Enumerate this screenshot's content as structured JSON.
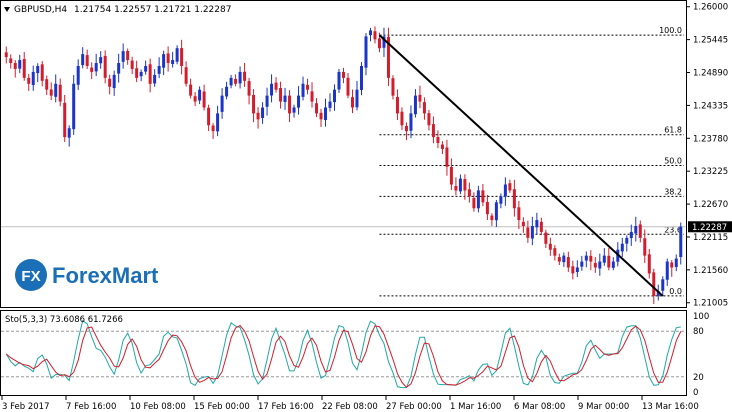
{
  "symbol": "GBPUSD,H4",
  "ohlc_header": "1.21754 1.22557 1.21721 1.22287",
  "price_axis": {
    "ticks": [
      "1.26000",
      "1.25445",
      "1.24890",
      "1.24335",
      "1.23780",
      "1.23225",
      "1.22670",
      "1.22115",
      "1.21560",
      "1.21005"
    ],
    "current_price": "1.22287",
    "current_price_value": 1.22287,
    "min": 1.2095,
    "max": 1.2608
  },
  "fibonacci": {
    "levels": [
      {
        "label": "100.0",
        "price": 1.2552
      },
      {
        "label": "61.8",
        "price": 1.2384
      },
      {
        "label": "50.0",
        "price": 1.2332
      },
      {
        "label": "38.2",
        "price": 1.228
      },
      {
        "label": "23.6",
        "price": 1.2216
      },
      {
        "label": "0.0",
        "price": 1.2112
      }
    ]
  },
  "trendline": {
    "from_index": 83,
    "from_price": 1.2552,
    "to_index": 146,
    "to_price": 1.2112
  },
  "stochastic": {
    "label": "Sto(5,3,3) 73.6086 61.7266",
    "levels": [
      "100",
      "80",
      "20",
      "0"
    ]
  },
  "time_axis": {
    "labels": [
      "3 Feb 2017",
      "7 Feb 16:00",
      "10 Feb 08:00",
      "15 Feb 00:00",
      "17 Feb 16:00",
      "22 Feb 08:00",
      "27 Feb 00:00",
      "1 Mar 16:00",
      "6 Mar 08:00",
      "9 Mar 00:00",
      "13 Mar 16:00"
    ]
  },
  "brand": {
    "icon_text": "FX",
    "name": "ForexMart"
  },
  "colors": {
    "bull": "#1a35c8",
    "bear": "#d21e2c",
    "stoch_main": "#20a8a8",
    "stoch_signal": "#d21e2c",
    "brand_blue": "#1b6fb7"
  },
  "chart_data": {
    "type": "candlestick",
    "title": "GBPUSD,H4",
    "closes": [
      1.2515,
      1.2505,
      1.2495,
      1.251,
      1.248,
      1.247,
      1.249,
      1.25,
      1.2475,
      1.246,
      1.245,
      1.247,
      1.244,
      1.238,
      1.2395,
      1.247,
      1.25,
      1.252,
      1.25,
      1.249,
      1.2505,
      1.2515,
      1.248,
      1.2465,
      1.2485,
      1.2505,
      1.2525,
      1.251,
      1.2495,
      1.248,
      1.249,
      1.25,
      1.247,
      1.2485,
      1.25,
      1.252,
      1.2505,
      1.251,
      1.253,
      1.25,
      1.247,
      1.245,
      1.244,
      1.246,
      1.243,
      1.24,
      1.239,
      1.242,
      1.245,
      1.2465,
      1.248,
      1.247,
      1.249,
      1.2475,
      1.245,
      1.242,
      1.241,
      1.243,
      1.245,
      1.247,
      1.246,
      1.244,
      1.245,
      1.242,
      1.243,
      1.245,
      1.247,
      1.246,
      1.244,
      1.242,
      1.241,
      1.243,
      1.244,
      1.246,
      1.249,
      1.248,
      1.245,
      1.243,
      1.246,
      1.25,
      1.255,
      1.256,
      1.2545,
      1.253,
      1.255,
      1.248,
      1.245,
      1.242,
      1.24,
      1.239,
      1.242,
      1.245,
      1.244,
      1.242,
      1.24,
      1.238,
      1.237,
      1.236,
      1.233,
      1.23,
      1.229,
      1.231,
      1.229,
      1.228,
      1.226,
      1.229,
      1.227,
      1.225,
      1.224,
      1.227,
      1.228,
      1.23,
      1.229,
      1.226,
      1.224,
      1.223,
      1.221,
      1.223,
      1.224,
      1.222,
      1.22,
      1.219,
      1.218,
      1.217,
      1.218,
      1.216,
      1.215,
      1.216,
      1.217,
      1.218,
      1.217,
      1.216,
      1.217,
      1.218,
      1.216,
      1.217,
      1.219,
      1.22,
      1.221,
      1.222,
      1.223,
      1.221,
      1.218,
      1.215,
      1.2112,
      1.212,
      1.214,
      1.217,
      1.216,
      1.2175,
      1.2229
    ]
  }
}
